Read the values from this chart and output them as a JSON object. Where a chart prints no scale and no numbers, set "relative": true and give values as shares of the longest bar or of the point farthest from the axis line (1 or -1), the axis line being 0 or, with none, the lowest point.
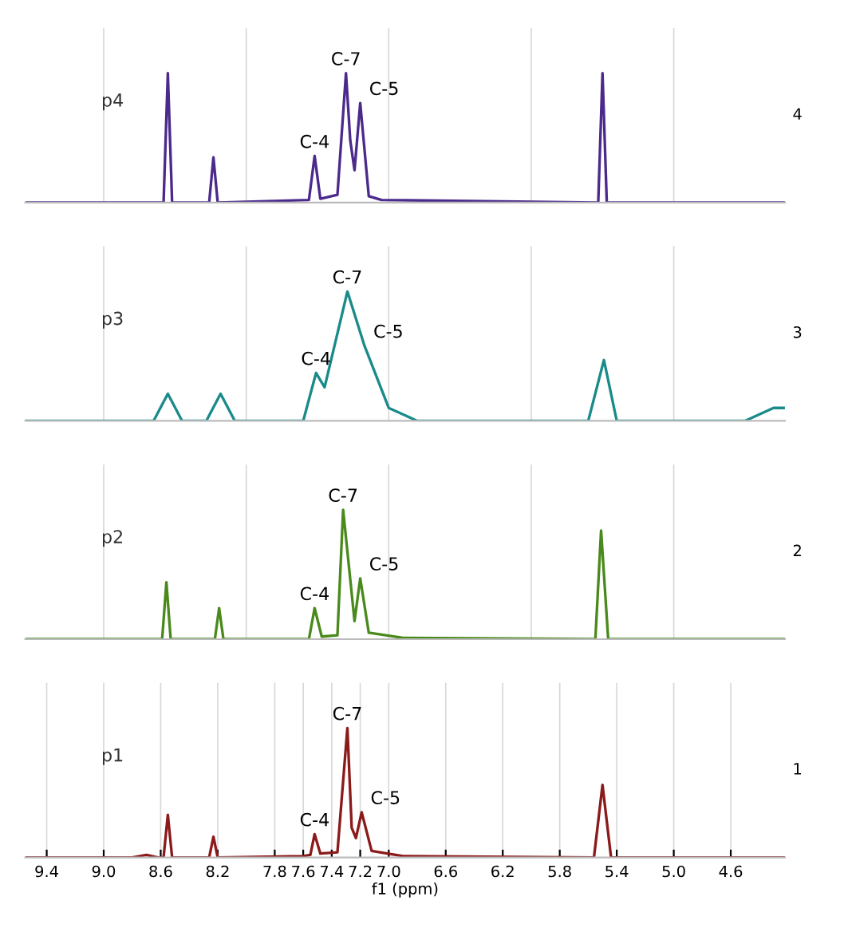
{
  "chart_data": [
    {
      "type": "line",
      "relative": true,
      "tick_labels": false,
      "grid": "x",
      "xlim": [
        9.55,
        4.22
      ],
      "legend": false,
      "series": [
        {
          "name": "p4",
          "color": "#4b2a8c",
          "x": [
            9.55,
            8.58,
            8.55,
            8.52,
            8.26,
            8.23,
            8.2,
            7.56,
            7.52,
            7.48,
            7.36,
            7.3,
            7.27,
            7.24,
            7.2,
            7.14,
            7.05,
            5.53,
            5.5,
            5.47,
            4.22
          ],
          "values": [
            0,
            0,
            1,
            0,
            0,
            0.35,
            0,
            0.02,
            0.36,
            0.03,
            0.06,
            1,
            0.48,
            0.25,
            0.77,
            0.05,
            0.02,
            0,
            1,
            0,
            0
          ]
        }
      ],
      "annotations": [
        {
          "text": "C-4",
          "x": 7.52,
          "y": 0.36
        },
        {
          "text": "C-7",
          "x": 7.3,
          "y": 1
        },
        {
          "text": "C-5",
          "x": 7.2,
          "y": 0.77
        },
        "4"
      ]
    },
    {
      "type": "line",
      "relative": true,
      "tick_labels": false,
      "grid": "x",
      "xlim": [
        9.55,
        4.22
      ],
      "legend": false,
      "series": [
        {
          "name": "p3",
          "color": "#1a8a8a",
          "x": [
            9.55,
            8.65,
            8.55,
            8.45,
            8.28,
            8.18,
            8.08,
            7.6,
            7.51,
            7.45,
            7.29,
            7.17,
            7.0,
            6.8,
            5.6,
            5.49,
            5.4,
            4.5,
            4.3,
            4.22
          ],
          "values": [
            0,
            0,
            0.21,
            0,
            0,
            0.21,
            0,
            0,
            0.37,
            0.26,
            1,
            0.58,
            0.1,
            0,
            0,
            0.47,
            0,
            0,
            0.1,
            0.1
          ]
        }
      ],
      "annotations": [
        {
          "text": "C-4",
          "x": 7.51,
          "y": 0.37
        },
        {
          "text": "C-7",
          "x": 7.29,
          "y": 1
        },
        {
          "text": "C-5",
          "x": 7.17,
          "y": 0.58
        },
        "3"
      ]
    },
    {
      "type": "line",
      "relative": true,
      "tick_labels": false,
      "grid": "x",
      "xlim": [
        9.55,
        4.22
      ],
      "legend": false,
      "series": [
        {
          "name": "p2",
          "color": "#4a8a1c",
          "x": [
            9.55,
            8.59,
            8.56,
            8.53,
            8.22,
            8.19,
            8.16,
            7.56,
            7.52,
            7.47,
            7.36,
            7.32,
            7.24,
            7.2,
            7.14,
            6.9,
            5.55,
            5.51,
            5.46,
            4.22
          ],
          "values": [
            0,
            0,
            0.44,
            0,
            0,
            0.24,
            0,
            0,
            0.24,
            0.02,
            0.03,
            1,
            0.14,
            0.47,
            0.05,
            0.01,
            0,
            0.84,
            0,
            0
          ]
        }
      ],
      "annotations": [
        {
          "text": "C-4",
          "x": 7.52,
          "y": 0.24
        },
        {
          "text": "C-7",
          "x": 7.32,
          "y": 1
        },
        {
          "text": "C-5",
          "x": 7.2,
          "y": 0.47
        },
        "2"
      ]
    },
    {
      "type": "line",
      "relative": true,
      "tick_labels": "x",
      "grid": "x",
      "xlim": [
        9.55,
        4.22
      ],
      "legend": false,
      "xlabel": "f1 (ppm)",
      "xticks": [
        9.4,
        {
          "value": 9,
          "label": "9.0"
        },
        8.6,
        8.2,
        7.8,
        7.6,
        7.4,
        7.2,
        {
          "value": 7,
          "label": "7.0"
        },
        6.6,
        6.2,
        5.8,
        5.4,
        {
          "value": 5,
          "label": "5.0"
        },
        4.6
      ],
      "series": [
        {
          "name": "p1",
          "color": "#8b1a1a",
          "x": [
            9.55,
            8.8,
            8.7,
            8.62,
            8.58,
            8.55,
            8.52,
            8.26,
            8.23,
            8.2,
            7.6,
            7.55,
            7.52,
            7.48,
            7.36,
            7.29,
            7.26,
            7.23,
            7.19,
            7.12,
            6.9,
            5.56,
            5.5,
            5.44,
            4.22
          ],
          "values": [
            0,
            0,
            0.02,
            0,
            0,
            0.33,
            0,
            0,
            0.16,
            0,
            0.01,
            0.02,
            0.18,
            0.03,
            0.04,
            1,
            0.23,
            0.15,
            0.35,
            0.05,
            0.01,
            0,
            0.56,
            0,
            0
          ]
        }
      ],
      "annotations": [
        {
          "text": "C-4",
          "x": 7.52,
          "y": 0.18
        },
        {
          "text": "C-7",
          "x": 7.29,
          "y": 1
        },
        {
          "text": "C-5",
          "x": 7.19,
          "y": 0.35
        },
        "1"
      ]
    }
  ]
}
